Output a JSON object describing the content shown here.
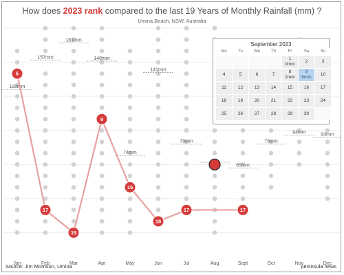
{
  "title": {
    "prefix": "How does ",
    "highlight": "2023 rank",
    "suffix": " compared to the last 19 Years of Monthly Rainfall (mm) ?",
    "highlight_color": "#d63a3a"
  },
  "subtitle": "Umina Beach, NSW, Australia",
  "source": "Source: Jim Morrison, Umina",
  "brand": "peninsula news",
  "colors": {
    "marker": "#d63a3a",
    "line": "#e8a0a0",
    "dots": "#d2d2d2",
    "grid": "#eeeeee",
    "selected": "#b8d3ee"
  },
  "calendar": {
    "title": "September 2023",
    "weekdays": [
      "Mo",
      "Tu",
      "We",
      "Th",
      "Fr",
      "Sa",
      "Su"
    ],
    "weeks": [
      [
        {
          "d": ""
        },
        {
          "d": ""
        },
        {
          "d": ""
        },
        {
          "d": ""
        },
        {
          "d": "1",
          "v": "0mm"
        },
        {
          "d": "2"
        },
        {
          "d": "3"
        }
      ],
      [
        {
          "d": "4"
        },
        {
          "d": "5"
        },
        {
          "d": "6"
        },
        {
          "d": "7"
        },
        {
          "d": "8",
          "v": "2mm"
        },
        {
          "d": "9",
          "v": "6mm",
          "selected": true
        },
        {
          "d": "10"
        }
      ],
      [
        {
          "d": "11"
        },
        {
          "d": "12"
        },
        {
          "d": "13"
        },
        {
          "d": "14"
        },
        {
          "d": "15"
        },
        {
          "d": "16"
        },
        {
          "d": "17"
        }
      ],
      [
        {
          "d": "18"
        },
        {
          "d": "19"
        },
        {
          "d": "20"
        },
        {
          "d": "21"
        },
        {
          "d": "22"
        },
        {
          "d": "23"
        },
        {
          "d": "24"
        }
      ],
      [
        {
          "d": "25"
        },
        {
          "d": "26"
        },
        {
          "d": "27"
        },
        {
          "d": "28"
        },
        {
          "d": "29"
        },
        {
          "d": "30"
        },
        {
          "d": ""
        }
      ]
    ]
  },
  "chart_data": {
    "type": "scatter",
    "categories": [
      "Jan",
      "Feb",
      "Mar",
      "Apr",
      "May",
      "Jun",
      "Jul",
      "Aug",
      "Sept",
      "Oct",
      "Nov",
      "Dec"
    ],
    "y_rank_range": [
      1,
      20
    ],
    "grid": true,
    "series": [
      {
        "name": "2023 rank",
        "values": [
          5,
          17,
          19,
          9,
          15,
          18,
          17,
          null,
          17,
          null,
          null,
          null
        ],
        "extra_marker": {
          "category": "Aug",
          "rank": 13,
          "label": ""
        }
      }
    ],
    "median_labels": [
      "118mm",
      "157mm",
      "181mm",
      "148mm",
      "74mm",
      "141mm",
      "79mm",
      "",
      "65mm",
      "79mm",
      "94mm",
      "93mm"
    ],
    "median_ranks": [
      6.4,
      3.8,
      2.3,
      3.9,
      12.2,
      4.9,
      11.2,
      12.8,
      13.3,
      11.2,
      10.4,
      10.6
    ],
    "other_years_ranks": [
      [
        3,
        4,
        6,
        7,
        8,
        9,
        10,
        11,
        12,
        13,
        14,
        15,
        16,
        17,
        18,
        19
      ],
      [
        1,
        2,
        3,
        5,
        6,
        7,
        8,
        9,
        10,
        11,
        12,
        13,
        14,
        15,
        16,
        18,
        19
      ],
      [
        1,
        2,
        3,
        4,
        5,
        6,
        7,
        8,
        9,
        10,
        11,
        12,
        13,
        14,
        15,
        16,
        17,
        18
      ],
      [
        1,
        2,
        3,
        4,
        5,
        6,
        7,
        8,
        10,
        11,
        12,
        13,
        14,
        15,
        16,
        17,
        18,
        19
      ],
      [
        3,
        4,
        5,
        6,
        7,
        8,
        9,
        10,
        11,
        12,
        13,
        14,
        16,
        17,
        18,
        19
      ],
      [
        1,
        2,
        3,
        4,
        5,
        6,
        7,
        8,
        9,
        10,
        11,
        12,
        13,
        14,
        15,
        16,
        17
      ],
      [
        1,
        2,
        3,
        4,
        5,
        6,
        7,
        8,
        9,
        10,
        11,
        12,
        13,
        14,
        15,
        16
      ],
      [
        1,
        2,
        3,
        4,
        5,
        6,
        7,
        8,
        9,
        10,
        11,
        12,
        14,
        15,
        16,
        17,
        18,
        19
      ],
      [
        3,
        4,
        5,
        6,
        7,
        8,
        9,
        10,
        11,
        12,
        13,
        14,
        15,
        16
      ],
      [
        3,
        4,
        5,
        6,
        7,
        8,
        9,
        10,
        11,
        12,
        13,
        14,
        15
      ],
      [
        2,
        3,
        4,
        5,
        6,
        7,
        8,
        9,
        10,
        11,
        12,
        13
      ],
      [
        3,
        4,
        5,
        6,
        7,
        8,
        9,
        10,
        11,
        12,
        13,
        14,
        15,
        16
      ]
    ]
  }
}
